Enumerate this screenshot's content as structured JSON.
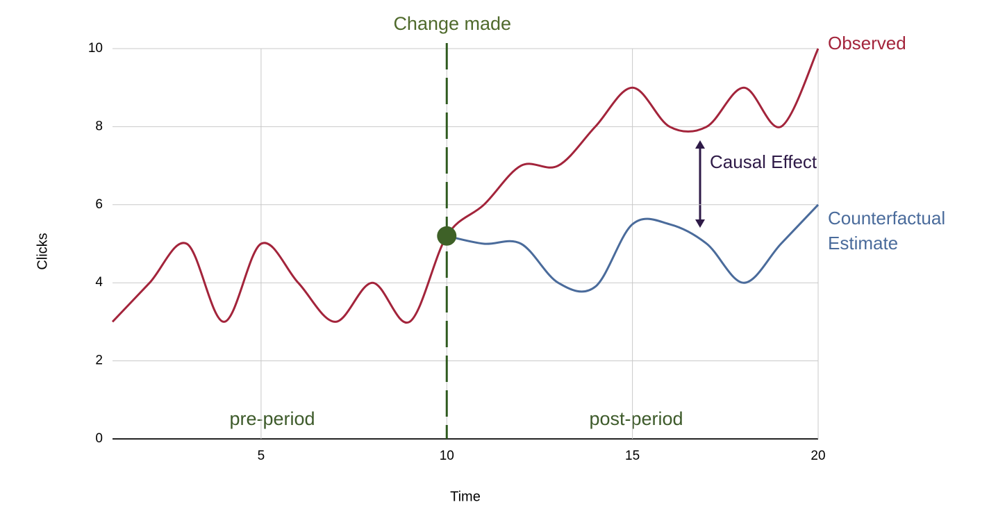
{
  "chart_data": {
    "type": "line",
    "x_label": "Time",
    "y_label": "Clicks",
    "x": [
      1,
      2,
      3,
      4,
      5,
      6,
      7,
      8,
      9,
      10,
      11,
      12,
      13,
      14,
      15,
      16,
      17,
      18,
      19,
      20
    ],
    "series": [
      {
        "name": "Observed",
        "color": "#a3243b",
        "values": [
          3,
          4,
          5,
          3,
          5,
          4,
          3,
          4,
          3,
          5.2,
          6,
          7,
          7,
          8,
          9,
          8,
          8,
          9,
          8,
          10
        ]
      },
      {
        "name": "Counterfactual Estimate",
        "color": "#4a6b9b",
        "values": [
          null,
          null,
          null,
          null,
          null,
          null,
          null,
          null,
          null,
          5.2,
          5,
          5,
          4,
          3.9,
          5.5,
          5.5,
          5,
          4,
          5,
          6
        ]
      }
    ],
    "xlim": [
      1,
      20
    ],
    "xticks": [
      5,
      10,
      15,
      20
    ],
    "ylim": [
      0,
      10
    ],
    "yticks": [
      0,
      2,
      4,
      6,
      8,
      10
    ],
    "grid": true,
    "change": {
      "label": "Change made",
      "x": 10
    },
    "periods": [
      "pre-period",
      "post-period"
    ],
    "effect_label": "Causal Effect"
  }
}
